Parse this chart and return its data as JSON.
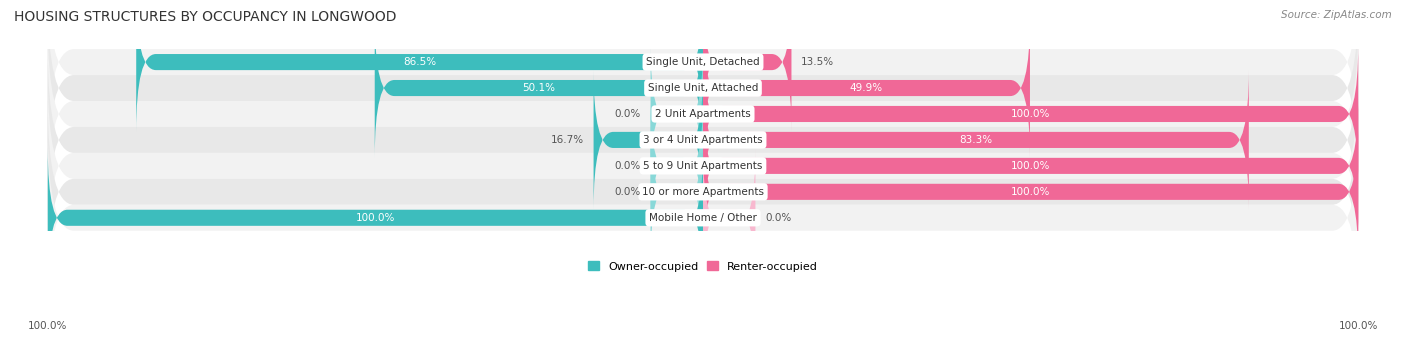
{
  "title": "HOUSING STRUCTURES BY OCCUPANCY IN LONGWOOD",
  "source": "Source: ZipAtlas.com",
  "categories": [
    "Single Unit, Detached",
    "Single Unit, Attached",
    "2 Unit Apartments",
    "3 or 4 Unit Apartments",
    "5 to 9 Unit Apartments",
    "10 or more Apartments",
    "Mobile Home / Other"
  ],
  "owner_pct": [
    86.5,
    50.1,
    0.0,
    16.7,
    0.0,
    0.0,
    100.0
  ],
  "renter_pct": [
    13.5,
    49.9,
    100.0,
    83.3,
    100.0,
    100.0,
    0.0
  ],
  "owner_color": "#3dbdbd",
  "renter_color": "#f06897",
  "owner_stub_color": "#88d8d8",
  "renter_stub_color": "#f8b8cf",
  "row_colors": [
    "#f2f2f2",
    "#e8e8e8"
  ],
  "title_fontsize": 10,
  "source_fontsize": 7.5,
  "label_fontsize": 7.5,
  "cat_fontsize": 7.5,
  "figsize": [
    14.06,
    3.41
  ],
  "dpi": 100
}
